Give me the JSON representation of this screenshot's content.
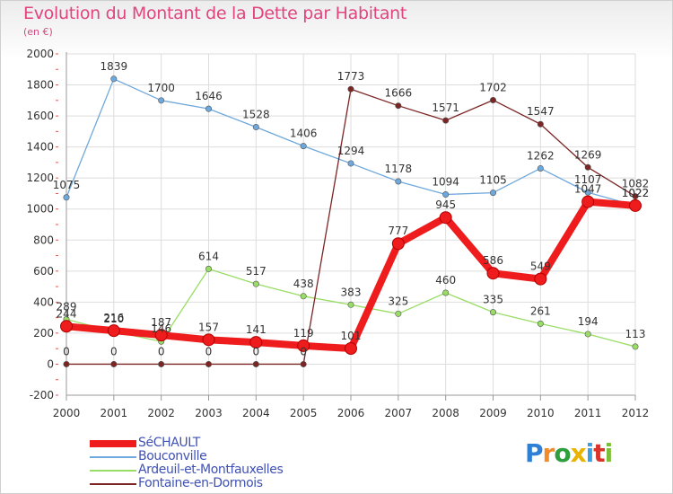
{
  "chart_data": {
    "type": "line",
    "title": "Evolution du Montant de la Dette par Habitant",
    "subtitle": "(en €)",
    "x": [
      "2000",
      "2001",
      "2002",
      "2003",
      "2004",
      "2005",
      "2006",
      "2007",
      "2008",
      "2009",
      "2010",
      "2011",
      "2012"
    ],
    "ylim": [
      -200,
      2000
    ],
    "yticks": [
      -200,
      0,
      200,
      400,
      600,
      800,
      1000,
      1200,
      1400,
      1600,
      1800,
      2000
    ],
    "grid": true,
    "legend_position": "bottom-left",
    "series": [
      {
        "name": "SéCHAULT",
        "color": "#ee1c1c",
        "values": [
          244,
          216,
          187,
          157,
          141,
          119,
          101,
          777,
          945,
          586,
          549,
          1047,
          1022
        ]
      },
      {
        "name": "Bouconville",
        "color": "#6fa8dc",
        "values": [
          1075,
          1839,
          1700,
          1646,
          1528,
          1406,
          1294,
          1178,
          1094,
          1105,
          1262,
          1107,
          1022
        ]
      },
      {
        "name": "Ardeuil-et-Montfauxelles",
        "color": "#99dd66",
        "values": [
          289,
          210,
          146,
          614,
          517,
          438,
          383,
          325,
          460,
          335,
          261,
          194,
          113
        ]
      },
      {
        "name": "Fontaine-en-Dormois",
        "color": "#7b2525",
        "values": [
          0,
          0,
          0,
          0,
          0,
          0,
          1773,
          1666,
          1571,
          1702,
          1547,
          1269,
          1082
        ]
      }
    ]
  },
  "logo": {
    "letters": [
      "P",
      "r",
      "o",
      "x",
      "i",
      "t",
      "i"
    ],
    "colors": [
      "#2e7fd6",
      "#f28c28",
      "#2e9e3f",
      "#e8b400",
      "#3aa0e0",
      "#d8342c",
      "#7bbf3a"
    ]
  }
}
